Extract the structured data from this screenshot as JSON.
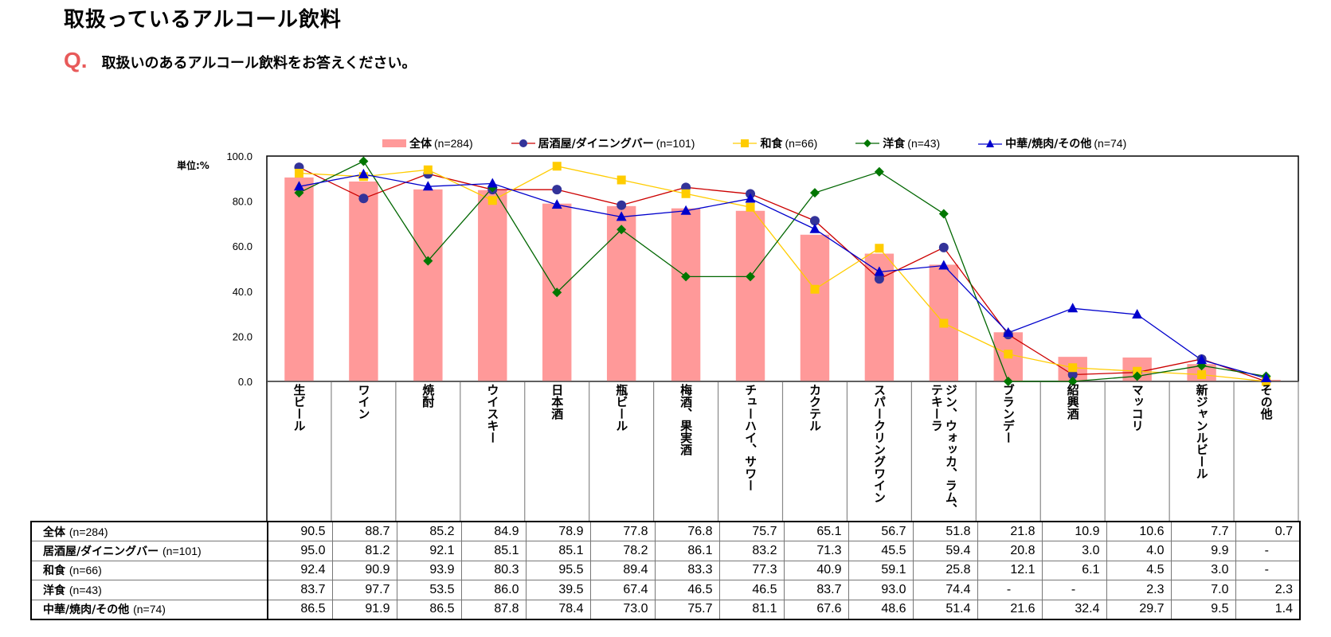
{
  "page": {
    "title": "取扱っているアルコール飲料",
    "question_mark": "Q.",
    "question": "取扱いのあるアルコール飲料をお答えください。"
  },
  "colors": {
    "bar": "#FF9999",
    "izakaya_line": "#CC0000",
    "izakaya_marker": "#333399",
    "washoku": "#FFCC00",
    "yoshoku": "#006600",
    "yoshoku_marker": "#007700",
    "chuka": "#0000CC"
  },
  "chart_data": {
    "type": "bar",
    "title": "",
    "unit_label": "単位:%",
    "ylim": [
      0,
      100
    ],
    "yticks": [
      "0.0",
      "20.0",
      "40.0",
      "60.0",
      "80.0",
      "100.0"
    ],
    "categories": [
      "生ビール",
      "ワイン",
      "焼酎",
      "ウイスキー",
      "日本酒",
      "瓶ビール",
      "梅酒、果実酒",
      "チューハイ、サワー",
      "カクテル",
      "スパークリングワイン",
      "ジン、ウォッカ、ラム、テキーラ",
      "ブランデー",
      "紹興酒",
      "マッコリ",
      "新ジャンルビール",
      "その他"
    ],
    "legend_position": "top",
    "series": [
      {
        "name": "全体",
        "n": "(n=284)",
        "kind": "bar",
        "marker": "none",
        "values": [
          90.5,
          88.7,
          85.2,
          84.9,
          78.9,
          77.8,
          76.8,
          75.7,
          65.1,
          56.7,
          51.8,
          21.8,
          10.9,
          10.6,
          7.7,
          0.7
        ],
        "labels": [
          "90.5",
          "88.7",
          "85.2",
          "84.9",
          "78.9",
          "77.8",
          "76.8",
          "75.7",
          "65.1",
          "56.7",
          "51.8",
          "21.8",
          "10.9",
          "10.6",
          "7.7",
          "0.7"
        ]
      },
      {
        "name": "居酒屋/ダイニングバー",
        "n": "(n=101)",
        "kind": "line",
        "marker": "circle",
        "values": [
          95.0,
          81.2,
          92.1,
          85.1,
          85.1,
          78.2,
          86.1,
          83.2,
          71.3,
          45.5,
          59.4,
          20.8,
          3.0,
          4.0,
          9.9,
          0
        ],
        "labels": [
          "95.0",
          "81.2",
          "92.1",
          "85.1",
          "85.1",
          "78.2",
          "86.1",
          "83.2",
          "71.3",
          "45.5",
          "59.4",
          "20.8",
          "3.0",
          "4.0",
          "9.9",
          "-"
        ]
      },
      {
        "name": "和食",
        "n": "(n=66)",
        "kind": "line",
        "marker": "square",
        "values": [
          92.4,
          90.9,
          93.9,
          80.3,
          95.5,
          89.4,
          83.3,
          77.3,
          40.9,
          59.1,
          25.8,
          12.1,
          6.1,
          4.5,
          3.0,
          0
        ],
        "labels": [
          "92.4",
          "90.9",
          "93.9",
          "80.3",
          "95.5",
          "89.4",
          "83.3",
          "77.3",
          "40.9",
          "59.1",
          "25.8",
          "12.1",
          "6.1",
          "4.5",
          "3.0",
          "-"
        ]
      },
      {
        "name": "洋食",
        "n": "(n=43)",
        "kind": "line",
        "marker": "diamond",
        "values": [
          83.7,
          97.7,
          53.5,
          86.0,
          39.5,
          67.4,
          46.5,
          46.5,
          83.7,
          93.0,
          74.4,
          0,
          0,
          2.3,
          7.0,
          2.3
        ],
        "labels": [
          "83.7",
          "97.7",
          "53.5",
          "86.0",
          "39.5",
          "67.4",
          "46.5",
          "46.5",
          "83.7",
          "93.0",
          "74.4",
          "-",
          "-",
          "2.3",
          "7.0",
          "2.3"
        ]
      },
      {
        "name": "中華/焼肉/その他",
        "n": "(n=74)",
        "kind": "line",
        "marker": "triangle",
        "values": [
          86.5,
          91.9,
          86.5,
          87.8,
          78.4,
          73.0,
          75.7,
          81.1,
          67.6,
          48.6,
          51.4,
          21.6,
          32.4,
          29.7,
          9.5,
          1.4
        ],
        "labels": [
          "86.5",
          "91.9",
          "86.5",
          "87.8",
          "78.4",
          "73.0",
          "75.7",
          "81.1",
          "67.6",
          "48.6",
          "51.4",
          "21.6",
          "32.4",
          "29.7",
          "9.5",
          "1.4"
        ]
      }
    ]
  }
}
